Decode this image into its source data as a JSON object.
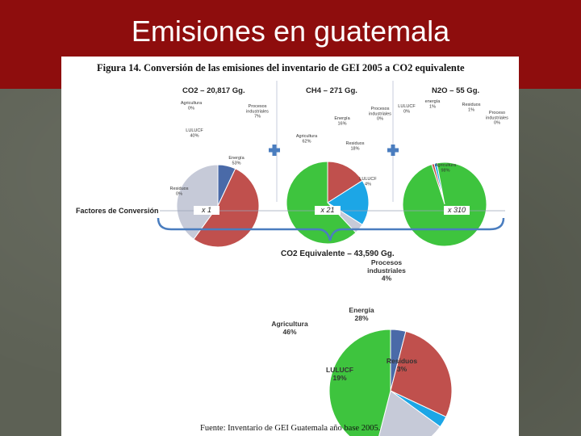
{
  "slide": {
    "title": "Emisiones en guatemala"
  },
  "figure": {
    "caption": "Figura 14. Conversión de las emisiones del inventario de GEI 2005 a CO2 equivalente",
    "conversion_label": "Factores de Conversión",
    "factors": [
      "x 1",
      "x 21",
      "x 310"
    ],
    "source": "Fuente: Inventario de GEI Guatemala año base 2005."
  },
  "colors": {
    "procesos": "#4a6aa8",
    "energia": "#c0504d",
    "residuos": "#1ca6e6",
    "lulucf": "#c6cad8",
    "agricultura": "#3ec43e",
    "plus": "#4a7dbf",
    "brace": "#4a7dbf",
    "title_bar": "#8e0d0d"
  },
  "chart_data": [
    {
      "type": "pie",
      "title": "CO2 – 20,817 Gg.",
      "slices": [
        {
          "label": "Procesos industriales",
          "value": 7,
          "display": "7%",
          "color": "#4a6aa8"
        },
        {
          "label": "Energía",
          "value": 53,
          "display": "53%",
          "color": "#c0504d"
        },
        {
          "label": "Residuos",
          "value": 0,
          "display": "0%",
          "color": "#1ca6e6"
        },
        {
          "label": "LULUCF",
          "value": 40,
          "display": "40%",
          "color": "#c6cad8"
        },
        {
          "label": "Agricultura",
          "value": 0,
          "display": "0%",
          "color": "#3ec43e"
        }
      ]
    },
    {
      "type": "pie",
      "title": "CH4 – 271 Gg.",
      "slices": [
        {
          "label": "Procesos industriales",
          "value": 0,
          "display": "0%",
          "color": "#4a6aa8"
        },
        {
          "label": "Energía",
          "value": 16,
          "display": "16%",
          "color": "#c0504d"
        },
        {
          "label": "Residuos",
          "value": 18,
          "display": "18%",
          "color": "#1ca6e6"
        },
        {
          "label": "LULUCF",
          "value": 4,
          "display": "4%",
          "color": "#c6cad8"
        },
        {
          "label": "Agricultura",
          "value": 62,
          "display": "62%",
          "color": "#3ec43e"
        }
      ]
    },
    {
      "type": "pie",
      "title": "N2O – 55 Gg.",
      "slices": [
        {
          "label": "Procesos industriales",
          "value": 0,
          "display": "0%",
          "color": "#4a6aa8"
        },
        {
          "label": "Energía",
          "value": 1,
          "display": "1%",
          "color": "#c0504d"
        },
        {
          "label": "Residuos",
          "value": 1,
          "display": "1%",
          "color": "#1ca6e6"
        },
        {
          "label": "LULUCF",
          "value": 0,
          "display": "0%",
          "color": "#c6cad8"
        },
        {
          "label": "Agricultura",
          "value": 98,
          "display": "98%",
          "color": "#3ec43e"
        }
      ]
    },
    {
      "type": "pie",
      "title": "CO2 Equivalente – 43,590 Gg.",
      "slices": [
        {
          "label": "Procesos industriales",
          "value": 4,
          "display": "4%",
          "color": "#4a6aa8"
        },
        {
          "label": "Energía",
          "value": 28,
          "display": "28%",
          "color": "#c0504d"
        },
        {
          "label": "Residuos",
          "value": 3,
          "display": "3%",
          "color": "#1ca6e6"
        },
        {
          "label": "LULUCF",
          "value": 19,
          "display": "19%",
          "color": "#c6cad8"
        },
        {
          "label": "Agricultura",
          "value": 46,
          "display": "46%",
          "color": "#3ec43e"
        }
      ]
    }
  ]
}
